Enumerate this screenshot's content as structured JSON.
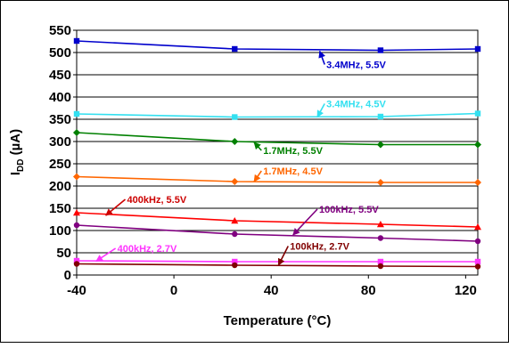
{
  "chart_data": {
    "type": "line",
    "title": "",
    "xlabel": "Temperature (°C)",
    "ylabel_main": "I",
    "ylabel_sub": "DD",
    "ylabel_unit": " (µA)",
    "xlim": [
      -40,
      125
    ],
    "ylim": [
      0,
      550
    ],
    "x_ticks": [
      -40,
      0,
      40,
      80,
      120
    ],
    "y_ticks": [
      0,
      50,
      100,
      150,
      200,
      250,
      300,
      350,
      400,
      450,
      500,
      550
    ],
    "grid": "horizontal",
    "legend": "none",
    "x": [
      -40,
      25,
      85,
      125
    ],
    "series": [
      {
        "name": "3.4MHz, 5.5V",
        "color": "#0000cc",
        "marker": "square",
        "values": [
          526,
          508,
          505,
          508
        ],
        "label_at": [
          62,
          465
        ],
        "arrow_to": [
          60,
          503
        ],
        "label_color": "#0000cc"
      },
      {
        "name": "3.4MHz, 4.5V",
        "color": "#33e0f0",
        "marker": "square",
        "values": [
          362,
          355,
          356,
          363
        ],
        "label_at": [
          62,
          377
        ],
        "arrow_to": [
          59,
          355
        ],
        "label_color": "#33e0f0"
      },
      {
        "name": "1.7MHz, 5.5V",
        "color": "#008000",
        "marker": "diamond",
        "values": [
          320,
          300,
          293,
          293
        ],
        "label_at": [
          36,
          272
        ],
        "arrow_to": [
          33,
          298
        ],
        "label_color": "#008000"
      },
      {
        "name": "1.7MHz, 4.5V",
        "color": "#ff6600",
        "marker": "diamond",
        "values": [
          221,
          210,
          208,
          208
        ],
        "label_at": [
          36,
          226
        ],
        "arrow_to": [
          33,
          210
        ],
        "label_color": "#ff6600"
      },
      {
        "name": "400kHz, 5.5V",
        "color": "#ff0000",
        "marker": "triangle",
        "values": [
          140,
          122,
          114,
          108
        ],
        "label_at": [
          -20,
          162
        ],
        "arrow_to": [
          -28,
          134
        ],
        "label_color": "#cc0000"
      },
      {
        "name": "100kHz, 5.5V",
        "color": "#800080",
        "marker": "circle",
        "values": [
          112,
          92,
          83,
          76
        ],
        "label_at": [
          59,
          140
        ],
        "arrow_to": [
          49,
          90
        ],
        "label_color": "#800080"
      },
      {
        "name": "400kHz, 2.7V",
        "color": "#ff33ff",
        "marker": "square",
        "values": [
          32,
          30,
          30,
          30
        ],
        "label_at": [
          -24,
          52
        ],
        "arrow_to": [
          -32,
          31
        ],
        "label_color": "#ff33ff"
      },
      {
        "name": "100kHz, 2.7V",
        "color": "#800000",
        "marker": "circle",
        "values": [
          25,
          22,
          20,
          19
        ],
        "label_at": [
          47,
          57
        ],
        "arrow_to": [
          43,
          22
        ],
        "label_color": "#800000"
      }
    ]
  }
}
